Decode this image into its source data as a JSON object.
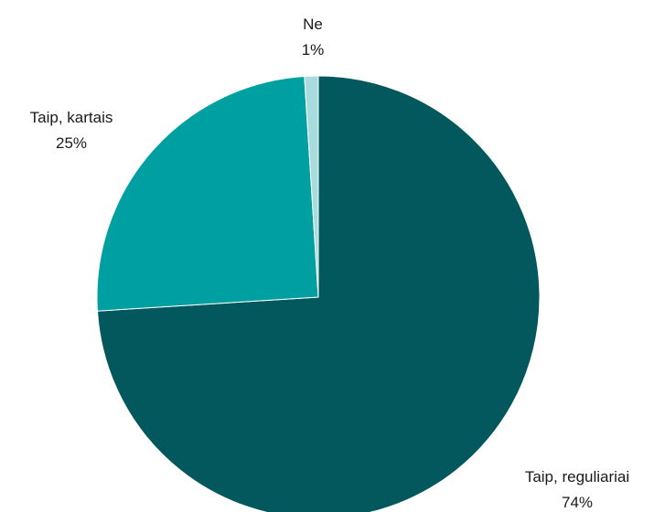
{
  "chart_data": {
    "type": "pie",
    "title": "",
    "slices": [
      {
        "label": "Taip, reguliariai",
        "value": 74,
        "value_label": "74%",
        "color": "#02585c"
      },
      {
        "label": "Taip, kartais",
        "value": 25,
        "value_label": "25%",
        "color": "#00a0a2"
      },
      {
        "label": "Ne",
        "value": 1,
        "value_label": "1%",
        "color": "#a8dcdc"
      }
    ],
    "start": "12 o'clock",
    "direction": "clockwise",
    "legend": "none",
    "data_labels": "outside"
  }
}
